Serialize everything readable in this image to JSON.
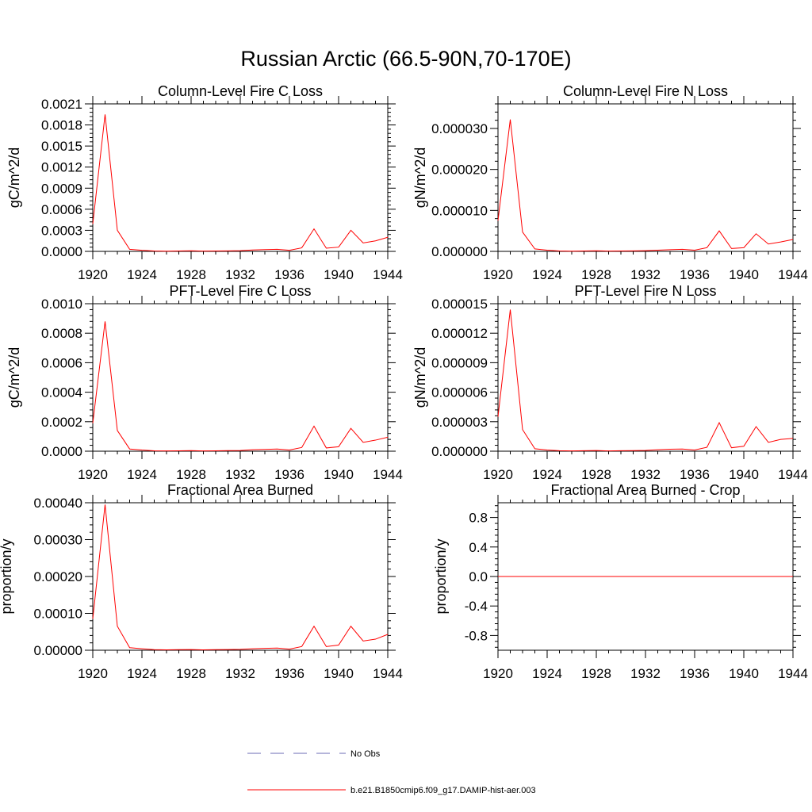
{
  "figure": {
    "title": "Russian Arctic (66.5-90N,70-170E)"
  },
  "legend": [
    {
      "label": "No Obs",
      "color": "#6b6bb5",
      "dash": true
    },
    {
      "label": "b.e21.B1850cmip6.f09_g17.DAMIP-hist-aer.003",
      "color": "#ff0000",
      "dash": false
    }
  ],
  "chart_data": [
    {
      "type": "line",
      "title": "Column-Level Fire C Loss",
      "ylabel": "gC/m^2/d",
      "xlim": [
        1920,
        1944
      ],
      "ylim": [
        0,
        0.0021
      ],
      "xticks": [
        1920,
        1924,
        1928,
        1932,
        1936,
        1940,
        1944
      ],
      "xtick_labels": [
        "1920",
        "1924",
        "1928",
        "1932",
        "1936",
        "1940",
        "1944"
      ],
      "yticks": [
        0,
        0.0003,
        0.0006,
        0.0009,
        0.0012,
        0.0015,
        0.0018,
        0.0021
      ],
      "ytick_labels": [
        "0.0000",
        "0.0003",
        "0.0006",
        "0.0009",
        "0.0012",
        "0.0015",
        "0.0018",
        "0.0021"
      ],
      "series": [
        {
          "color": "#ff0000",
          "x": [
            1920,
            1921,
            1922,
            1923,
            1924,
            1925,
            1926,
            1927,
            1928,
            1929,
            1930,
            1931,
            1932,
            1933,
            1934,
            1935,
            1936,
            1937,
            1938,
            1939,
            1940,
            1941,
            1942,
            1943,
            1944
          ],
          "y": [
            0.00039,
            0.00195,
            0.0003,
            3e-05,
            1.5e-05,
            5e-06,
            3e-06,
            6e-06,
            8e-06,
            4e-06,
            5e-06,
            7e-06,
            1e-05,
            2e-05,
            2.5e-05,
            3e-05,
            1.5e-05,
            5e-05,
            0.00032,
            4.5e-05,
            6e-05,
            0.0003,
            0.00012,
            0.00015,
            0.0002
          ]
        }
      ]
    },
    {
      "type": "line",
      "title": "Column-Level Fire N Loss",
      "ylabel": "gN/m^2/d",
      "xlim": [
        1920,
        1944
      ],
      "ylim": [
        0,
        3.6e-05
      ],
      "xticks": [
        1920,
        1924,
        1928,
        1932,
        1936,
        1940,
        1944
      ],
      "xtick_labels": [
        "1920",
        "1924",
        "1928",
        "1932",
        "1936",
        "1940",
        "1944"
      ],
      "yticks": [
        0,
        1e-05,
        2e-05,
        3e-05
      ],
      "ytick_labels": [
        "0.000000",
        "0.000010",
        "0.000020",
        "0.000030"
      ],
      "series": [
        {
          "color": "#ff0000",
          "x": [
            1920,
            1921,
            1922,
            1923,
            1924,
            1925,
            1926,
            1927,
            1928,
            1929,
            1930,
            1931,
            1932,
            1933,
            1934,
            1935,
            1936,
            1937,
            1938,
            1939,
            1940,
            1941,
            1942,
            1943,
            1944
          ],
          "y": [
            7.5e-06,
            3.22e-05,
            4.7e-06,
            6e-07,
            3e-07,
            1e-07,
            5e-08,
            1e-07,
            1.5e-07,
            8e-08,
            1e-07,
            1.2e-07,
            1.8e-07,
            3e-07,
            4e-07,
            5e-07,
            3e-07,
            9e-07,
            5e-06,
            7e-07,
            9e-07,
            4.3e-06,
            1.8e-06,
            2.3e-06,
            2.9e-06
          ]
        }
      ]
    },
    {
      "type": "line",
      "title": "PFT-Level Fire C Loss",
      "ylabel": "gC/m^2/d",
      "xlim": [
        1920,
        1944
      ],
      "ylim": [
        0,
        0.001
      ],
      "xticks": [
        1920,
        1924,
        1928,
        1932,
        1936,
        1940,
        1944
      ],
      "xtick_labels": [
        "1920",
        "1924",
        "1928",
        "1932",
        "1936",
        "1940",
        "1944"
      ],
      "yticks": [
        0,
        0.0002,
        0.0004,
        0.0006,
        0.0008,
        0.001
      ],
      "ytick_labels": [
        "0.0000",
        "0.0002",
        "0.0004",
        "0.0006",
        "0.0008",
        "0.0010"
      ],
      "series": [
        {
          "color": "#ff0000",
          "x": [
            1920,
            1921,
            1922,
            1923,
            1924,
            1925,
            1926,
            1927,
            1928,
            1929,
            1930,
            1931,
            1932,
            1933,
            1934,
            1935,
            1936,
            1937,
            1938,
            1939,
            1940,
            1941,
            1942,
            1943,
            1944
          ],
          "y": [
            0.00019,
            0.00088,
            0.00014,
            1.5e-05,
            8e-06,
            3e-06,
            2e-06,
            3e-06,
            4e-06,
            2e-06,
            3e-06,
            4e-06,
            5e-06,
            1e-05,
            1.2e-05,
            1.5e-05,
            8e-06,
            2.5e-05,
            0.00017,
            2.2e-05,
            3e-05,
            0.000155,
            6e-05,
            7.5e-05,
            9.5e-05
          ]
        }
      ]
    },
    {
      "type": "line",
      "title": "PFT-Level Fire N Loss",
      "ylabel": "gN/m^2/d",
      "xlim": [
        1920,
        1944
      ],
      "ylim": [
        0,
        1.5e-05
      ],
      "xticks": [
        1920,
        1924,
        1928,
        1932,
        1936,
        1940,
        1944
      ],
      "xtick_labels": [
        "1920",
        "1924",
        "1928",
        "1932",
        "1936",
        "1940",
        "1944"
      ],
      "yticks": [
        0,
        3e-06,
        6e-06,
        9e-06,
        1.2e-05,
        1.5e-05
      ],
      "ytick_labels": [
        "0.000000",
        "0.000003",
        "0.000006",
        "0.000009",
        "0.000012",
        "0.000015"
      ],
      "series": [
        {
          "color": "#ff0000",
          "x": [
            1920,
            1921,
            1922,
            1923,
            1924,
            1925,
            1926,
            1927,
            1928,
            1929,
            1930,
            1931,
            1932,
            1933,
            1934,
            1935,
            1936,
            1937,
            1938,
            1939,
            1940,
            1941,
            1942,
            1943,
            1944
          ],
          "y": [
            3.5e-06,
            1.44e-05,
            2.2e-06,
            2.5e-07,
            1.2e-07,
            5e-08,
            3e-08,
            5e-08,
            7e-08,
            3e-08,
            5e-08,
            6e-08,
            8e-08,
            1.5e-07,
            2e-07,
            2.2e-07,
            1.2e-07,
            4e-07,
            2.9e-06,
            3.5e-07,
            5e-07,
            2.5e-06,
            9e-07,
            1.2e-06,
            1.3e-06
          ]
        }
      ]
    },
    {
      "type": "line",
      "title": "Fractional Area Burned",
      "ylabel": "proportion/y",
      "xlim": [
        1920,
        1944
      ],
      "ylim": [
        0,
        0.0004
      ],
      "xticks": [
        1920,
        1924,
        1928,
        1932,
        1936,
        1940,
        1944
      ],
      "xtick_labels": [
        "1920",
        "1924",
        "1928",
        "1932",
        "1936",
        "1940",
        "1944"
      ],
      "yticks": [
        0,
        0.0001,
        0.0002,
        0.0003,
        0.0004
      ],
      "ytick_labels": [
        "0.00000",
        "0.00010",
        "0.00020",
        "0.00030",
        "0.00040"
      ],
      "series": [
        {
          "color": "#ff0000",
          "x": [
            1920,
            1921,
            1922,
            1923,
            1924,
            1925,
            1926,
            1927,
            1928,
            1929,
            1930,
            1931,
            1932,
            1933,
            1934,
            1935,
            1936,
            1937,
            1938,
            1939,
            1940,
            1941,
            1942,
            1943,
            1944
          ],
          "y": [
            8.5e-05,
            0.000395,
            6.5e-05,
            7e-06,
            4e-06,
            1.5e-06,
            1e-06,
            1.5e-06,
            2e-06,
            1e-06,
            1.5e-06,
            2e-06,
            2.5e-06,
            4e-06,
            5e-06,
            6e-06,
            3e-06,
            1e-05,
            6.5e-05,
            1e-05,
            1.4e-05,
            6.5e-05,
            2.5e-05,
            3e-05,
            4.3e-05
          ]
        }
      ]
    },
    {
      "type": "line",
      "title": "Fractional Area Burned - Crop",
      "ylabel": "proportion/y",
      "xlim": [
        1920,
        1944
      ],
      "ylim": [
        -1,
        1
      ],
      "xticks": [
        1920,
        1924,
        1928,
        1932,
        1936,
        1940,
        1944
      ],
      "xtick_labels": [
        "1920",
        "1924",
        "1928",
        "1932",
        "1936",
        "1940",
        "1944"
      ],
      "yticks": [
        -0.8,
        -0.4,
        0,
        0.4,
        0.8
      ],
      "ytick_labels": [
        "-0.8",
        "-0.4",
        "0.0",
        "0.4",
        "0.8"
      ],
      "series": [
        {
          "color": "#ff0000",
          "x": [
            1920,
            1944
          ],
          "y": [
            0,
            0
          ]
        }
      ]
    }
  ]
}
